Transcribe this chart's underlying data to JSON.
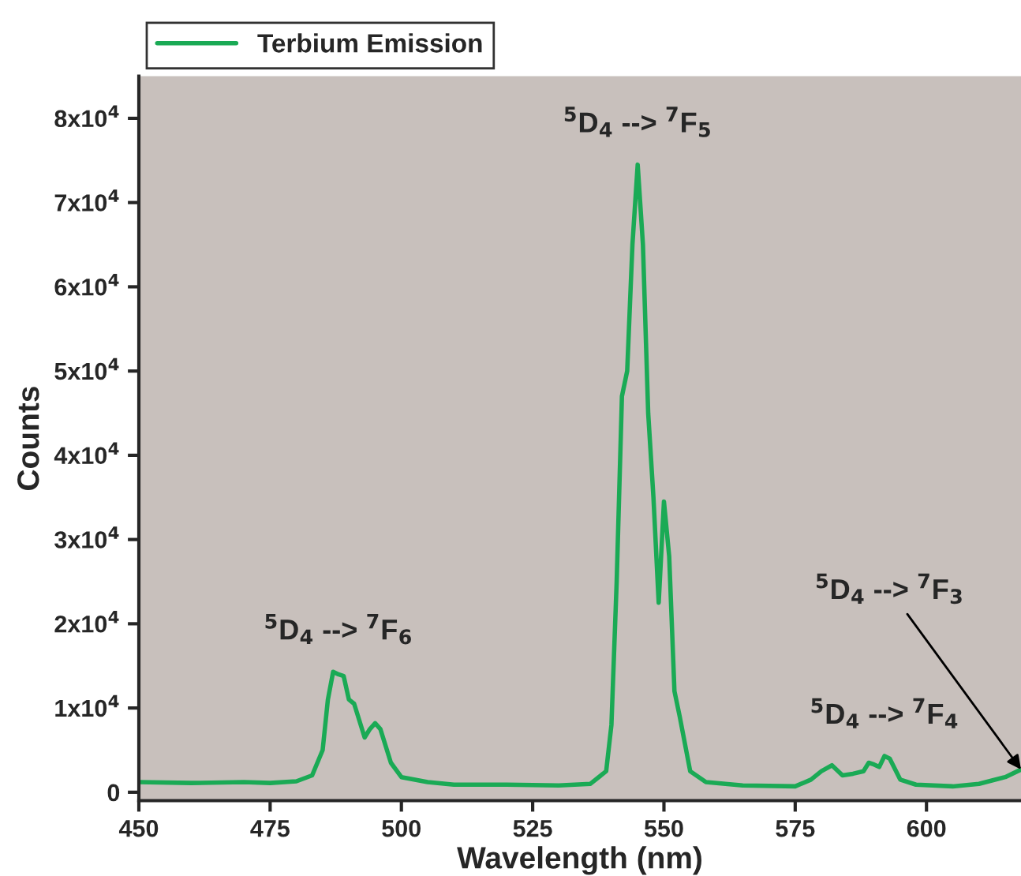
{
  "chart_data": {
    "type": "line",
    "xlabel": "Wavelength (nm)",
    "ylabel": "Counts",
    "x": [
      450,
      460,
      470,
      475,
      480,
      483,
      485,
      486,
      487,
      488,
      489,
      490,
      491,
      493,
      494,
      495,
      496,
      498,
      500,
      505,
      510,
      520,
      530,
      536,
      539,
      540,
      541,
      542,
      543,
      544,
      545,
      546,
      547,
      548,
      549,
      550,
      551,
      552,
      553,
      555,
      558,
      565,
      575,
      578,
      580,
      582,
      584,
      586,
      588,
      589,
      590,
      591,
      592,
      593,
      595,
      598,
      605,
      610,
      615,
      618
    ],
    "series": [
      {
        "name": "Terbium Emission",
        "color": "#1aaa55",
        "values": [
          1200,
          1100,
          1200,
          1100,
          1300,
          2000,
          5000,
          11000,
          14300,
          14000,
          13800,
          11000,
          10500,
          6500,
          7500,
          8200,
          7500,
          3500,
          1800,
          1200,
          900,
          900,
          800,
          1000,
          2500,
          8000,
          25000,
          47000,
          50000,
          65000,
          74500,
          65000,
          45000,
          35000,
          22500,
          34500,
          28000,
          12000,
          9000,
          2500,
          1200,
          800,
          700,
          1500,
          2500,
          3200,
          2000,
          2200,
          2500,
          3500,
          3300,
          3000,
          4300,
          4000,
          1500,
          900,
          700,
          1000,
          1800,
          2700
        ]
      }
    ],
    "xlim": [
      450,
      618
    ],
    "xticks": [
      450,
      475,
      500,
      525,
      550,
      575,
      600
    ],
    "ylim": [
      -1000,
      85000
    ],
    "yticks": [
      0,
      {
        "value": 10000,
        "label": "1x10$^{4}$"
      },
      {
        "value": 20000,
        "label": "2x10$^{4}$"
      },
      {
        "value": 30000,
        "label": "3x10$^{4}$"
      },
      {
        "value": 40000,
        "label": "4x10$^{4}$"
      },
      {
        "value": 50000,
        "label": "5x10$^{4}$"
      },
      {
        "value": 60000,
        "label": "6x10$^{4}$"
      },
      {
        "value": 70000,
        "label": "7x10$^{4}$"
      },
      {
        "value": 80000,
        "label": "8x10$^{4}$"
      }
    ],
    "annotations": [
      {
        "text": "$^{5}$D$_{4}$ --> $^{7}$F$_{6}$",
        "x": 488,
        "y": 14300
      },
      {
        "text": "$^{5}$D$_{4}$ --> $^{7}$F$_{5}$",
        "x": 545,
        "y": 74500
      },
      {
        "text": "$^{5}$D$_{4}$ --> $^{7}$F$_{4}$",
        "x": 592,
        "y": 4300
      },
      {
        "text": "$^{5}$D$_{4}$ --> $^{7}$F$_{3}$",
        "x": 618,
        "y": 2700
      }
    ],
    "legend": "top left",
    "grid": false,
    "marker": "none",
    "line_style": "solid"
  }
}
